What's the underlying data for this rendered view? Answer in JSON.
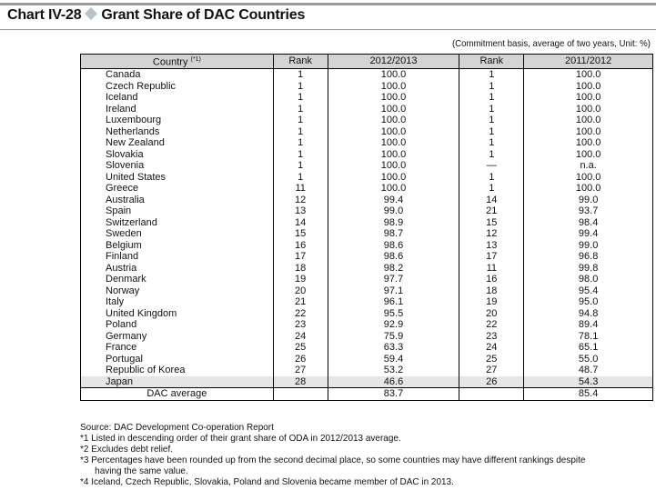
{
  "title": {
    "chart_no": "Chart IV-28",
    "text": "Grant Share of DAC Countries"
  },
  "note": "(Commitment basis, average of two years, Unit: %)",
  "headers": {
    "country": "Country",
    "country_sup": "(*1)",
    "rank1": "Rank",
    "period1": "2012/2013",
    "rank2": "Rank",
    "period2": "2011/2012"
  },
  "rows": [
    [
      "Canada",
      "1",
      "100.0",
      "1",
      "100.0"
    ],
    [
      "Czech Republic",
      "1",
      "100.0",
      "1",
      "100.0"
    ],
    [
      "Iceland",
      "1",
      "100.0",
      "1",
      "100.0"
    ],
    [
      "Ireland",
      "1",
      "100.0",
      "1",
      "100.0"
    ],
    [
      "Luxembourg",
      "1",
      "100.0",
      "1",
      "100.0"
    ],
    [
      "Netherlands",
      "1",
      "100.0",
      "1",
      "100.0"
    ],
    [
      "New Zealand",
      "1",
      "100.0",
      "1",
      "100.0"
    ],
    [
      "Slovakia",
      "1",
      "100.0",
      "1",
      "100.0"
    ],
    [
      "Slovenia",
      "1",
      "100.0",
      "—",
      "n.a."
    ],
    [
      "United States",
      "1",
      "100.0",
      "1",
      "100.0"
    ],
    [
      "Greece",
      "11",
      "100.0",
      "1",
      "100.0"
    ],
    [
      "Australia",
      "12",
      "99.4",
      "14",
      "99.0"
    ],
    [
      "Spain",
      "13",
      "99.0",
      "21",
      "93.7"
    ],
    [
      "Switzerland",
      "14",
      "98.9",
      "15",
      "98.4"
    ],
    [
      "Sweden",
      "15",
      "98.7",
      "12",
      "99.4"
    ],
    [
      "Belgium",
      "16",
      "98.6",
      "13",
      "99.0"
    ],
    [
      "Finland",
      "17",
      "98.6",
      "17",
      "96.8"
    ],
    [
      "Austria",
      "18",
      "98.2",
      "11",
      "99.8"
    ],
    [
      "Denmark",
      "19",
      "97.7",
      "16",
      "98.0"
    ],
    [
      "Norway",
      "20",
      "97.1",
      "18",
      "95.4"
    ],
    [
      "Italy",
      "21",
      "96.1",
      "19",
      "95.0"
    ],
    [
      "United Kingdom",
      "22",
      "95.5",
      "20",
      "94.8"
    ],
    [
      "Poland",
      "23",
      "92.9",
      "22",
      "89.4"
    ],
    [
      "Germany",
      "24",
      "75.9",
      "23",
      "78.1"
    ],
    [
      "France",
      "25",
      "63.3",
      "24",
      "65.1"
    ],
    [
      "Portugal",
      "26",
      "59.4",
      "25",
      "55.0"
    ],
    [
      "Republic of Korea",
      "27",
      "53.2",
      "27",
      "48.7"
    ],
    [
      "Japan",
      "28",
      "46.6",
      "26",
      "54.3"
    ]
  ],
  "average": {
    "label": "DAC average",
    "period1": "83.7",
    "period2": "85.4"
  },
  "footnotes": {
    "source": "Source: DAC Development Co-operation Report",
    "n1": "*1  Listed in descending order of their grant share of ODA in 2012/2013 average.",
    "n2": "*2  Excludes debt relief.",
    "n3a": "*3  Percentages have been rounded up from the second decimal place, so some countries may have different rankings despite",
    "n3b": "having the same value.",
    "n4": "*4  Iceland, Czech Republic, Slovakia, Poland and Slovenia became member of DAC in 2013."
  }
}
